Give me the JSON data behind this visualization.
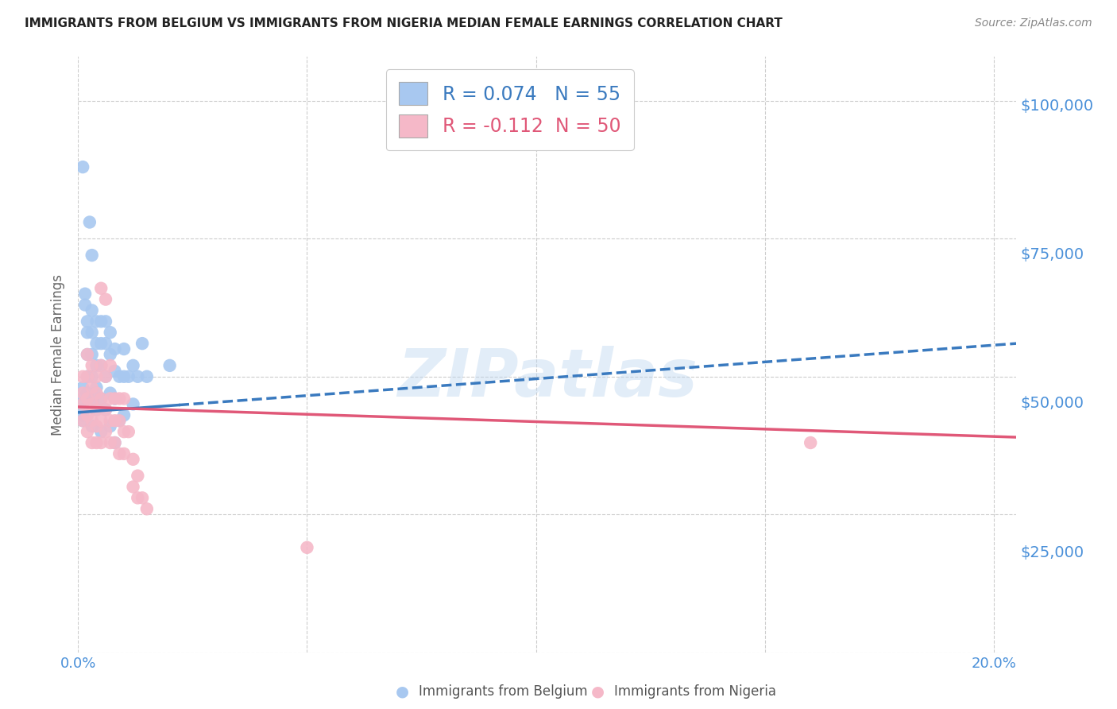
{
  "title": "IMMIGRANTS FROM BELGIUM VS IMMIGRANTS FROM NIGERIA MEDIAN FEMALE EARNINGS CORRELATION CHART",
  "source": "Source: ZipAtlas.com",
  "ylabel": "Median Female Earnings",
  "xlim": [
    0.0,
    0.205
  ],
  "ylim": [
    8000,
    108000
  ],
  "yticks": [
    25000,
    50000,
    75000,
    100000
  ],
  "ytick_labels": [
    "$25,000",
    "$50,000",
    "$75,000",
    "$100,000"
  ],
  "xticks": [
    0.0,
    0.05,
    0.1,
    0.15,
    0.2
  ],
  "xtick_labels": [
    "0.0%",
    "",
    "",
    "",
    "20.0%"
  ],
  "belgium_R": 0.074,
  "belgium_N": 55,
  "nigeria_R": -0.112,
  "nigeria_N": 50,
  "belgium_color": "#a8c8f0",
  "nigeria_color": "#f5b8c8",
  "belgium_trend_color": "#3a7abf",
  "nigeria_trend_color": "#e05878",
  "watermark": "ZIPatlas",
  "axis_color": "#4a90d9",
  "grid_color": "#cccccc",
  "background_color": "#ffffff",
  "bel_trend_x": [
    0.0,
    0.205
  ],
  "bel_trend_y": [
    43500,
    56000
  ],
  "nig_trend_x": [
    0.0,
    0.205
  ],
  "nig_trend_y": [
    44500,
    39000
  ],
  "belgium_scatter_x": [
    0.001,
    0.001,
    0.001,
    0.001,
    0.001,
    0.0015,
    0.0015,
    0.002,
    0.002,
    0.002,
    0.002,
    0.002,
    0.0025,
    0.003,
    0.003,
    0.003,
    0.003,
    0.003,
    0.003,
    0.003,
    0.004,
    0.004,
    0.004,
    0.004,
    0.004,
    0.005,
    0.005,
    0.005,
    0.005,
    0.005,
    0.006,
    0.006,
    0.006,
    0.006,
    0.007,
    0.007,
    0.007,
    0.007,
    0.008,
    0.008,
    0.008,
    0.008,
    0.009,
    0.009,
    0.01,
    0.01,
    0.01,
    0.011,
    0.012,
    0.012,
    0.013,
    0.014,
    0.015,
    0.02,
    0.001
  ],
  "belgium_scatter_y": [
    44000,
    46000,
    48000,
    43000,
    42000,
    65000,
    63000,
    60000,
    58000,
    54000,
    50000,
    47000,
    78000,
    72000,
    62000,
    58000,
    54000,
    50000,
    46000,
    41000,
    60000,
    56000,
    52000,
    48000,
    44000,
    60000,
    56000,
    52000,
    46000,
    40000,
    60000,
    56000,
    50000,
    44000,
    58000,
    54000,
    47000,
    41000,
    55000,
    51000,
    46000,
    38000,
    50000,
    42000,
    55000,
    50000,
    43000,
    50000,
    52000,
    45000,
    50000,
    56000,
    50000,
    52000,
    88000
  ],
  "nigeria_scatter_x": [
    0.001,
    0.001,
    0.001,
    0.001,
    0.002,
    0.002,
    0.002,
    0.002,
    0.002,
    0.003,
    0.003,
    0.003,
    0.003,
    0.003,
    0.004,
    0.004,
    0.004,
    0.004,
    0.004,
    0.005,
    0.005,
    0.005,
    0.005,
    0.005,
    0.006,
    0.006,
    0.006,
    0.006,
    0.007,
    0.007,
    0.007,
    0.007,
    0.008,
    0.008,
    0.008,
    0.009,
    0.009,
    0.009,
    0.01,
    0.01,
    0.01,
    0.011,
    0.012,
    0.012,
    0.013,
    0.013,
    0.014,
    0.015,
    0.16,
    0.05
  ],
  "nigeria_scatter_y": [
    45000,
    47000,
    50000,
    42000,
    54000,
    50000,
    46000,
    43000,
    40000,
    52000,
    48000,
    45000,
    42000,
    38000,
    50000,
    47000,
    44000,
    41000,
    38000,
    66000,
    52000,
    46000,
    42000,
    38000,
    64000,
    50000,
    44000,
    40000,
    52000,
    46000,
    42000,
    38000,
    46000,
    42000,
    38000,
    46000,
    42000,
    36000,
    46000,
    40000,
    36000,
    40000,
    35000,
    30000,
    32000,
    28000,
    28000,
    26000,
    38000,
    19000
  ]
}
